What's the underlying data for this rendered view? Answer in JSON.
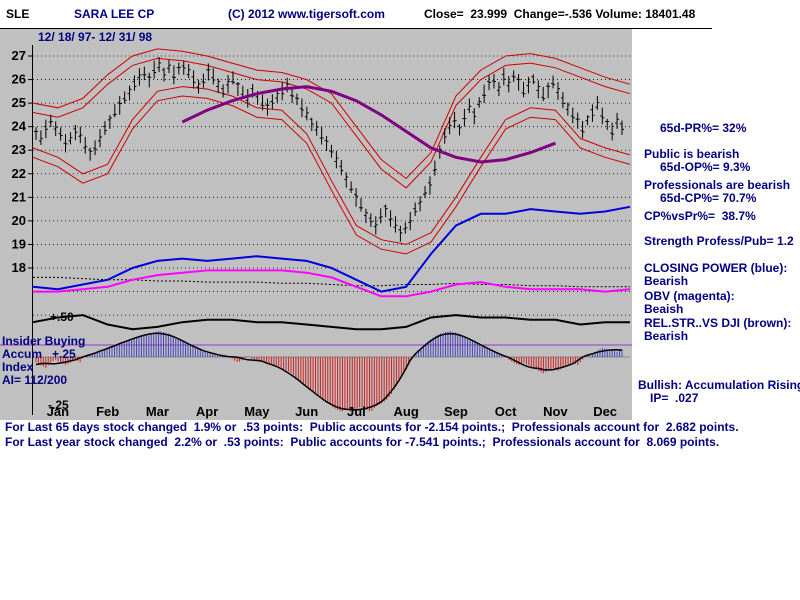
{
  "header": {
    "symbol": "SLE",
    "title": "SARA LEE CP",
    "copyright": "(C) 2012 www.tigersoft.com",
    "quote": "Close=  23.999  Change=-.536 Volume: 18401.48",
    "date_range": "12/ 18/ 97- 12/ 31/ 98"
  },
  "left_labels": {
    "rel_scale": "+.50",
    "insider_line1": "Insider Buying",
    "insider_line2": "Accum   +.25",
    "insider_line3": "Index",
    "insider_line4": "AI= 112/200",
    "ai_scale_low": "-.25"
  },
  "right_panel": {
    "lines": [
      "65d-PR%= 32%",
      "Public is bearish",
      "65d-OP%= 9.3%",
      "Professionals are bearish",
      "65d-CP%= 70.7%",
      "CP%vsPr%=  38.7%",
      "Strength Profess/Pub= 1.2",
      "CLOSING POWER (blue):",
      "Bearish",
      "OBV (magenta):",
      "Beaish",
      "REL.STR..VS DJI (brown):",
      "Bearish",
      "Bullish: Accumulation Rising",
      "IP=  .027"
    ]
  },
  "footer": {
    "line1": "For Last 65 days stock changed  1.9% or  .53 points:  Public accounts for -2.154 points.;  Professionals account for  2.682 points.",
    "line2": "For Last year stock changed  2.2% or  .53 points:  Public accounts for -7.541 points.;  Professionals account for  8.069 points."
  },
  "chart_data": {
    "type": "candlestick+indicators",
    "symbol": "SLE",
    "title": "SARA LEE CP",
    "date_range": "12/ 18/ 97- 12/ 31/ 98",
    "close": 23.999,
    "change": -0.536,
    "volume": 18401.48,
    "ai_reading": "112/200",
    "ip": 0.027,
    "y_ticks": [
      27,
      26,
      25,
      24,
      23,
      22,
      21,
      20,
      19,
      18
    ],
    "grid_levels": [
      27,
      26,
      25,
      24,
      23,
      22,
      21,
      20,
      19,
      18,
      17,
      16
    ],
    "months": [
      "Jan",
      "Feb",
      "Mar",
      "Apr",
      "May",
      "Jun",
      "Jul",
      "Aug",
      "Sep",
      "Oct",
      "Nov",
      "Dec"
    ],
    "price_mid": [
      23.8,
      23.5,
      23.9,
      24.2,
      24.0,
      23.6,
      23.3,
      23.5,
      23.8,
      23.6,
      23.2,
      22.9,
      23.1,
      23.5,
      23.9,
      24.3,
      24.6,
      24.9,
      25.2,
      25.5,
      25.8,
      26.1,
      26.3,
      26.0,
      26.4,
      26.6,
      26.3,
      26.5,
      26.2,
      26.4,
      26.6,
      26.3,
      26.0,
      25.7,
      26.0,
      26.3,
      26.1,
      25.8,
      25.5,
      25.8,
      26.0,
      25.7,
      25.4,
      25.2,
      25.5,
      25.3,
      25.0,
      24.8,
      25.1,
      25.3,
      25.5,
      25.7,
      25.4,
      25.1,
      24.8,
      24.5,
      24.2,
      23.9,
      23.6,
      23.3,
      23.0,
      22.6,
      22.2,
      21.8,
      21.4,
      21.0,
      20.6,
      20.3,
      20.0,
      19.8,
      20.2,
      20.5,
      20.1,
      19.8,
      19.5,
      19.7,
      20.0,
      20.4,
      20.8,
      21.2,
      21.5,
      22.2,
      23.0,
      23.6,
      24.0,
      24.3,
      23.9,
      24.4,
      24.8,
      24.5,
      25.0,
      25.4,
      25.8,
      26.0,
      25.6,
      26.1,
      25.8,
      26.2,
      25.9,
      25.5,
      25.8,
      26.0,
      25.6,
      25.3,
      25.6,
      25.9,
      25.5,
      25.1,
      24.8,
      24.5,
      24.2,
      23.9,
      24.3,
      24.6,
      24.9,
      24.5,
      24.1,
      23.8,
      24.2,
      24.0
    ],
    "upper_band": [
      25.0,
      24.8,
      25.2,
      26.2,
      27.0,
      27.3,
      27.2,
      27.0,
      26.7,
      26.4,
      26.3,
      26.0,
      25.4,
      24.0,
      22.6,
      21.8,
      22.9,
      25.3,
      26.4,
      27.0,
      27.1,
      26.9,
      26.5,
      26.1,
      25.8
    ],
    "lower_band": [
      22.7,
      22.3,
      21.6,
      22.0,
      23.9,
      25.1,
      25.3,
      25.2,
      24.9,
      24.4,
      24.3,
      23.3,
      21.3,
      19.4,
      18.8,
      18.6,
      19.1,
      20.6,
      22.3,
      23.9,
      24.4,
      24.3,
      23.1,
      22.7,
      22.4
    ],
    "ma": [
      null,
      null,
      null,
      null,
      null,
      null,
      24.2,
      24.7,
      25.1,
      25.4,
      25.6,
      25.7,
      25.5,
      25.1,
      24.5,
      23.8,
      23.1,
      22.7,
      22.5,
      22.6,
      22.9,
      23.3,
      null,
      null,
      null
    ],
    "closing_power": [
      17.2,
      17.1,
      17.3,
      17.5,
      18.0,
      18.3,
      18.4,
      18.3,
      18.4,
      18.5,
      18.4,
      18.3,
      18.0,
      17.5,
      17.0,
      17.2,
      18.6,
      19.8,
      20.3,
      20.3,
      20.5,
      20.4,
      20.3,
      20.4,
      20.6
    ],
    "obv": [
      17.0,
      17.0,
      17.1,
      17.2,
      17.5,
      17.7,
      17.8,
      17.9,
      17.9,
      17.9,
      17.9,
      17.8,
      17.6,
      17.2,
      16.8,
      16.8,
      17.0,
      17.3,
      17.4,
      17.2,
      17.1,
      17.1,
      17.1,
      17.0,
      17.1
    ],
    "cp_dotted": [
      17.6,
      17.6,
      17.55,
      17.5,
      17.5,
      17.45,
      17.45,
      17.4,
      17.4,
      17.4,
      17.35,
      17.35,
      17.3,
      17.25,
      17.25,
      17.3,
      17.3,
      17.35,
      17.3,
      17.3,
      17.25,
      17.25,
      17.2,
      17.2,
      17.2
    ],
    "rel_strength": [
      15.7,
      15.9,
      16.0,
      15.6,
      15.4,
      15.5,
      15.7,
      15.8,
      15.8,
      15.7,
      15.7,
      15.6,
      15.5,
      15.4,
      15.4,
      15.5,
      15.9,
      16.0,
      15.9,
      15.9,
      15.8,
      15.8,
      15.6,
      15.7,
      15.7
    ],
    "ai": [
      -0.1,
      -0.15,
      -0.2,
      -0.1,
      -0.05,
      -0.1,
      -0.15,
      -0.1,
      -0.05,
      -0.1,
      0.05,
      0.1,
      0.15,
      0.2,
      0.3,
      0.35,
      0.45,
      0.5,
      0.6,
      0.65,
      0.75,
      0.8,
      0.85,
      0.9,
      0.95,
      1.0,
      0.95,
      0.9,
      0.8,
      0.7,
      0.6,
      0.5,
      0.4,
      0.3,
      0.2,
      0.15,
      0.1,
      0.05,
      0.1,
      0.05,
      -0.05,
      -0.1,
      -0.05,
      0.05,
      -0.05,
      -0.05,
      -0.1,
      -0.1,
      -0.15,
      -0.15,
      -0.2,
      -0.25,
      -0.3,
      -0.4,
      -0.5,
      -0.55,
      -0.6,
      -0.7,
      -0.75,
      -0.8,
      -0.9,
      -0.95,
      -1.0,
      -0.95,
      -1.0,
      -0.95,
      -0.9,
      -0.95,
      -1.0,
      -0.9,
      -0.85,
      -0.8,
      -0.7,
      -0.55,
      -0.4,
      -0.25,
      -0.1,
      0.1,
      0.3,
      0.5,
      0.65,
      0.8,
      0.9,
      0.95,
      1.0,
      0.95,
      0.9,
      0.8,
      0.7,
      0.6,
      0.5,
      0.4,
      0.3,
      0.2,
      0.1,
      0.05,
      -0.05,
      -0.1,
      -0.15,
      -0.1,
      -0.15,
      -0.2,
      -0.25,
      -0.3,
      -0.25,
      -0.2,
      -0.25,
      -0.2,
      -0.15,
      -0.1,
      -0.15,
      -0.05,
      0.05,
      0.15,
      0.25,
      0.35,
      0.3,
      0.25,
      0.2,
      0.3
    ],
    "colors": {
      "price": "#000000",
      "bands": "#cc0000",
      "ma": "#800080",
      "closing_power": "#0000dd",
      "obv": "#ff00ff",
      "rel_strength": "#000000",
      "ai_up": "#4444bb",
      "ai_down": "#cc2222",
      "accum_line": "#9933cc",
      "background": "#c0c0c0",
      "text_navy": "#000080"
    }
  }
}
